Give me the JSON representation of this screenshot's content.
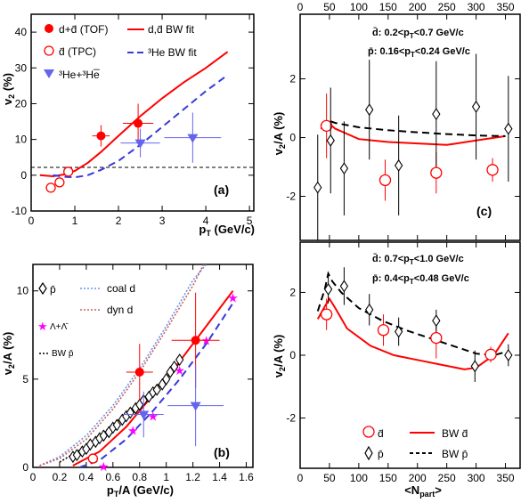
{
  "chart_data": [
    {
      "id": "a",
      "type": "line",
      "panel_label": "(a)",
      "xlabel": "p_T (GeV/c)",
      "ylabel": "v_2 (%)",
      "xlim": [
        0,
        5.1
      ],
      "ylim": [
        -10,
        45
      ],
      "xticks": [
        "0",
        "1",
        "2",
        "3",
        "4",
        "5"
      ],
      "yticks": [
        "-10",
        "0",
        "10",
        "20",
        "30",
        "40"
      ],
      "legend": {
        "d_tof": "d+d̄ (TOF)",
        "bw_d": "d,d̄ BW fit",
        "dbar_tpc": "d̄ (TPC)",
        "bw_he": "³He BW fit",
        "he3": "³He+³He̅"
      },
      "colors": {
        "red": "#ff0000",
        "blue": "#3838dd",
        "purple": "#6464ee"
      },
      "series": [
        {
          "key": "d_tof",
          "marker": "filled-circle",
          "points": [
            {
              "x": 1.6,
              "y": 11,
              "xerr": 0.2,
              "yerr": 3
            },
            {
              "x": 2.45,
              "y": 14.5,
              "xerr": 0.35,
              "yerr": 5.5
            }
          ]
        },
        {
          "key": "dbar_tpc",
          "marker": "open-circle",
          "points": [
            {
              "x": 0.45,
              "y": -3.5,
              "yerr": 1.3
            },
            {
              "x": 0.65,
              "y": -2,
              "yerr": 0.8
            },
            {
              "x": 0.85,
              "y": 1,
              "yerr": 0.6
            }
          ]
        },
        {
          "key": "he3",
          "marker": "filled-triangle",
          "points": [
            {
              "x": 2.5,
              "y": 9,
              "xerr": 0.45,
              "yerr": 4
            },
            {
              "x": 3.7,
              "y": 10.5,
              "xerr": 0.65,
              "yerr": 7
            }
          ]
        },
        {
          "key": "bw_d",
          "line": "solid",
          "points": [
            [
              0.2,
              0
            ],
            [
              0.5,
              -0.3
            ],
            [
              0.8,
              0.3
            ],
            [
              1.0,
              1.2
            ],
            [
              1.3,
              3.5
            ],
            [
              1.6,
              6.5
            ],
            [
              2.0,
              11
            ],
            [
              2.5,
              16.5
            ],
            [
              3.0,
              21.5
            ],
            [
              3.5,
              26
            ],
            [
              4.0,
              30
            ],
            [
              4.5,
              34.5
            ]
          ]
        },
        {
          "key": "bw_he",
          "line": "dashed",
          "points": [
            [
              0.5,
              0
            ],
            [
              0.8,
              -0.5
            ],
            [
              1.0,
              -0.6
            ],
            [
              1.3,
              0
            ],
            [
              1.6,
              1.5
            ],
            [
              2.0,
              4
            ],
            [
              2.5,
              8.5
            ],
            [
              3.0,
              13.5
            ],
            [
              3.5,
              18.5
            ],
            [
              4.0,
              23.5
            ],
            [
              4.5,
              28
            ]
          ]
        }
      ]
    },
    {
      "id": "b",
      "type": "line",
      "panel_label": "(b)",
      "xlabel": "p_T/A (GeV/c)",
      "ylabel": "v_2/A (%)",
      "xlim": [
        0,
        1.65
      ],
      "ylim": [
        0,
        11.5
      ],
      "xticks": [
        "0",
        "0.2",
        "0.4",
        "0.6",
        "0.8",
        "1",
        "1.2",
        "1.4",
        "1.6"
      ],
      "yticks": [
        "0",
        "5",
        "10"
      ],
      "legend": {
        "pbar": "p̄",
        "coal": "coal d",
        "dyn": "dyn d",
        "lambda": "Λ+Λ̄",
        "bw_p": "BW p̄"
      },
      "colors": {
        "pbar_bw": "#000000",
        "coal": "#6495ed",
        "dyn": "#cd5c5c",
        "lambda": "#ff00ff"
      },
      "series": [
        {
          "key": "pbar",
          "marker": "open-diamond",
          "points": [
            [
              0.3,
              0.6
            ],
            [
              0.33,
              0.7
            ],
            [
              0.37,
              0.9
            ],
            [
              0.4,
              1.05
            ],
            [
              0.43,
              1.3
            ],
            [
              0.47,
              1.45
            ],
            [
              0.5,
              1.65
            ],
            [
              0.53,
              1.8
            ],
            [
              0.57,
              2.0
            ],
            [
              0.6,
              2.25
            ],
            [
              0.63,
              2.4
            ],
            [
              0.67,
              2.7
            ],
            [
              0.7,
              2.9
            ],
            [
              0.73,
              3.1
            ],
            [
              0.77,
              3.35
            ],
            [
              0.8,
              3.55
            ],
            [
              0.83,
              3.8
            ],
            [
              0.87,
              4.0
            ],
            [
              0.9,
              4.25
            ],
            [
              0.93,
              4.4
            ],
            [
              0.97,
              4.7
            ],
            [
              1.0,
              5.0
            ],
            [
              1.03,
              5.4
            ],
            [
              1.06,
              5.7
            ],
            [
              1.1,
              6.1
            ]
          ]
        },
        {
          "key": "lambda",
          "marker": "star",
          "points": [
            [
              0.53,
              0.05
            ],
            [
              0.75,
              2.1
            ],
            [
              0.9,
              2.9
            ],
            [
              1.1,
              5.5
            ],
            [
              1.3,
              7.2
            ],
            [
              1.5,
              9.6
            ]
          ]
        },
        {
          "key": "d_tof",
          "marker": "filled-circle",
          "points": [
            {
              "x": 0.8,
              "y": 5.4,
              "xerr": 0.1,
              "yerr": 1.6
            },
            {
              "x": 1.22,
              "y": 7.2,
              "xerr": 0.18,
              "yerr": 2.7
            }
          ]
        },
        {
          "key": "dbar_tpc",
          "marker": "open-circle",
          "points": [
            {
              "x": 0.3,
              "y": -1.7
            },
            {
              "x": 0.33,
              "y": -1.0
            },
            {
              "x": 0.45,
              "y": 0.5
            }
          ]
        },
        {
          "key": "he3",
          "marker": "filled-triangle",
          "points": [
            {
              "x": 0.83,
              "y": 3.0,
              "xerr": 0.15,
              "yerr": 1.3
            },
            {
              "x": 1.22,
              "y": 3.5,
              "xerr": 0.21,
              "yerr": 2.3
            }
          ]
        },
        {
          "key": "coal",
          "line": "dotted",
          "points": [
            [
              0.05,
              0.1
            ],
            [
              0.2,
              0.6
            ],
            [
              0.4,
              1.8
            ],
            [
              0.6,
              3.5
            ],
            [
              0.8,
              5.6
            ],
            [
              1.0,
              8.0
            ],
            [
              1.2,
              10.6
            ],
            [
              1.3,
              11.5
            ]
          ]
        },
        {
          "key": "dyn",
          "line": "dotted",
          "points": [
            [
              0.05,
              0.1
            ],
            [
              0.2,
              0.5
            ],
            [
              0.4,
              1.6
            ],
            [
              0.6,
              3.3
            ],
            [
              0.8,
              5.4
            ],
            [
              1.0,
              7.8
            ],
            [
              1.2,
              10.3
            ],
            [
              1.28,
              11.5
            ]
          ]
        },
        {
          "key": "bw_p",
          "line": "dotted",
          "points": [
            [
              0.2,
              0.3
            ],
            [
              0.4,
              1.2
            ],
            [
              0.6,
              2.4
            ],
            [
              0.8,
              3.7
            ],
            [
              1.0,
              5.1
            ],
            [
              1.1,
              5.9
            ]
          ]
        },
        {
          "key": "bw_d",
          "line": "solid",
          "points": [
            [
              0.3,
              0.1
            ],
            [
              0.5,
              0.9
            ],
            [
              0.7,
              2.3
            ],
            [
              0.9,
              4.1
            ],
            [
              1.1,
              6.0
            ],
            [
              1.3,
              8.0
            ],
            [
              1.5,
              10.0
            ]
          ]
        },
        {
          "key": "bw_he",
          "line": "dashed",
          "points": [
            [
              0.35,
              0
            ],
            [
              0.5,
              0.4
            ],
            [
              0.7,
              1.6
            ],
            [
              0.9,
              3.2
            ],
            [
              1.1,
              5.0
            ],
            [
              1.3,
              7.0
            ],
            [
              1.5,
              9.3
            ]
          ]
        }
      ]
    },
    {
      "id": "c",
      "type": "line",
      "panel_label": "(c)",
      "ylabel": "v_2/A (%)",
      "xlim": [
        0,
        375
      ],
      "ylim": [
        -3.5,
        4.2
      ],
      "xticks_top": [
        "0",
        "50",
        "100",
        "150",
        "200",
        "250",
        "300",
        "350"
      ],
      "yticks": [
        "-2",
        "0",
        "2"
      ],
      "cut_d": "d̄: 0.2<p_T<0.7 GeV/c",
      "cut_p": "p̄: 0.16<p_T<0.24 GeV/c",
      "series": [
        {
          "key": "dbar",
          "marker": "open-circle",
          "points": [
            [
              45,
              0.4,
              1.1
            ],
            [
              145,
              -1.45,
              0.7
            ],
            [
              232,
              -1.2,
              0.7
            ],
            [
              328,
              -1.1,
              0.4
            ]
          ]
        },
        {
          "key": "pbar",
          "marker": "open-diamond",
          "points": [
            [
              30,
              -1.7,
              1.8
            ],
            [
              52,
              -0.1,
              1.8
            ],
            [
              75,
              -1.05,
              1.6
            ],
            [
              118,
              0.95,
              1.7
            ],
            [
              168,
              -0.95,
              1.7
            ],
            [
              232,
              0.8,
              1.8
            ],
            [
              300,
              1.05,
              1.8
            ],
            [
              355,
              0.3,
              1.8
            ]
          ]
        },
        {
          "key": "bw_d",
          "line": "solid",
          "points": [
            [
              35,
              0.3
            ],
            [
              48,
              0.5
            ],
            [
              60,
              0.3
            ],
            [
              100,
              -0.05
            ],
            [
              150,
              -0.15
            ],
            [
              200,
              -0.2
            ],
            [
              250,
              -0.25
            ],
            [
              300,
              -0.1
            ],
            [
              350,
              0.05
            ]
          ]
        },
        {
          "key": "bw_p",
          "line": "dashed",
          "points": [
            [
              35,
              0.4
            ],
            [
              48,
              0.58
            ],
            [
              60,
              0.5
            ],
            [
              100,
              0.35
            ],
            [
              150,
              0.25
            ],
            [
              200,
              0.18
            ],
            [
              250,
              0.12
            ],
            [
              300,
              0.07
            ],
            [
              350,
              0.05
            ]
          ]
        }
      ]
    },
    {
      "id": "d",
      "type": "line",
      "xlabel": "<N_part>",
      "ylabel": "v_2/A (%)",
      "xlim": [
        0,
        375
      ],
      "ylim": [
        -3.6,
        3.6
      ],
      "xticks": [
        "0",
        "50",
        "100",
        "150",
        "200",
        "250",
        "300",
        "350"
      ],
      "yticks": [
        "-2",
        "0",
        "2"
      ],
      "cut_d": "d̄: 0.7<p_T<1.0 GeV/c",
      "cut_p": "p̄: 0.4<p_T<0.48 GeV/c",
      "legend": {
        "dbar": "d̄",
        "pbar": "p̄",
        "bw_d": "BW d̄",
        "bw_p": "BW p̄"
      },
      "series": [
        {
          "key": "dbar",
          "marker": "open-circle",
          "points": [
            [
              45,
              1.3,
              0.5
            ],
            [
              142,
              0.8,
              0.5
            ],
            [
              232,
              0.55,
              0.65
            ],
            [
              325,
              0.02,
              0.25
            ]
          ]
        },
        {
          "key": "pbar",
          "marker": "open-diamond",
          "points": [
            [
              48,
              2.1,
              0.45
            ],
            [
              75,
              2.2,
              0.6
            ],
            [
              118,
              1.45,
              0.5
            ],
            [
              168,
              0.75,
              0.45
            ],
            [
              232,
              1.1,
              0.35
            ],
            [
              298,
              -0.35,
              0.5
            ],
            [
              355,
              0.0,
              0.35
            ]
          ]
        },
        {
          "key": "bw_d",
          "line": "solid",
          "points": [
            [
              30,
              1.15
            ],
            [
              42,
              1.55
            ],
            [
              50,
              1.8
            ],
            [
              60,
              1.5
            ],
            [
              80,
              0.85
            ],
            [
              120,
              0.3
            ],
            [
              160,
              0.0
            ],
            [
              200,
              -0.15
            ],
            [
              240,
              -0.3
            ],
            [
              280,
              -0.45
            ],
            [
              300,
              -0.4
            ],
            [
              330,
              0.0
            ],
            [
              355,
              0.7
            ]
          ]
        },
        {
          "key": "bw_p",
          "line": "dashed",
          "points": [
            [
              30,
              1.4
            ],
            [
              42,
              2.1
            ],
            [
              48,
              2.6
            ],
            [
              55,
              2.35
            ],
            [
              70,
              2.0
            ],
            [
              100,
              1.5
            ],
            [
              140,
              1.1
            ],
            [
              180,
              0.8
            ],
            [
              220,
              0.55
            ],
            [
              260,
              0.3
            ],
            [
              300,
              0.05
            ],
            [
              330,
              0.0
            ],
            [
              350,
              0.1
            ]
          ]
        }
      ]
    }
  ]
}
